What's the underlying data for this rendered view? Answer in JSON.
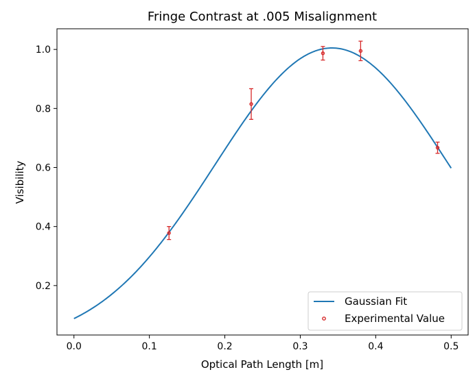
{
  "chart_data": {
    "type": "line",
    "title": "Fringe Contrast at .005 Misalignment",
    "xlabel": "Optical Path Length [m]",
    "ylabel": "Visibility",
    "xlim": [
      -0.0225,
      0.5225
    ],
    "ylim": [
      0.0325,
      1.07
    ],
    "x_ticks": [
      0.0,
      0.1,
      0.2,
      0.3,
      0.4,
      0.5
    ],
    "x_tick_labels": [
      "0.0",
      "0.1",
      "0.2",
      "0.3",
      "0.4",
      "0.5"
    ],
    "y_ticks": [
      0.2,
      0.4,
      0.6,
      0.8,
      1.0
    ],
    "y_tick_labels": [
      "0.2",
      "0.4",
      "0.6",
      "0.8",
      "1.0"
    ],
    "grid": false,
    "legend_position": "lower-right",
    "series": [
      {
        "name": "Gaussian Fit",
        "kind": "line",
        "color": "#1f77b4",
        "model": {
          "form": "amplitude * exp(-((x - center)^2) / (2 * sigma^2))",
          "amplitude": 1.005,
          "center": 0.342,
          "sigma": 0.155,
          "x_start": 0.0,
          "x_end": 0.5
        }
      },
      {
        "name": "Experimental Value",
        "kind": "errorbar-scatter",
        "color": "#d62728",
        "points": [
          {
            "x": 0.126,
            "y": 0.378,
            "err": 0.022
          },
          {
            "x": 0.235,
            "y": 0.815,
            "err": 0.052
          },
          {
            "x": 0.33,
            "y": 0.987,
            "err": 0.023
          },
          {
            "x": 0.38,
            "y": 0.995,
            "err": 0.033
          },
          {
            "x": 0.482,
            "y": 0.667,
            "err": 0.019
          }
        ]
      }
    ]
  }
}
